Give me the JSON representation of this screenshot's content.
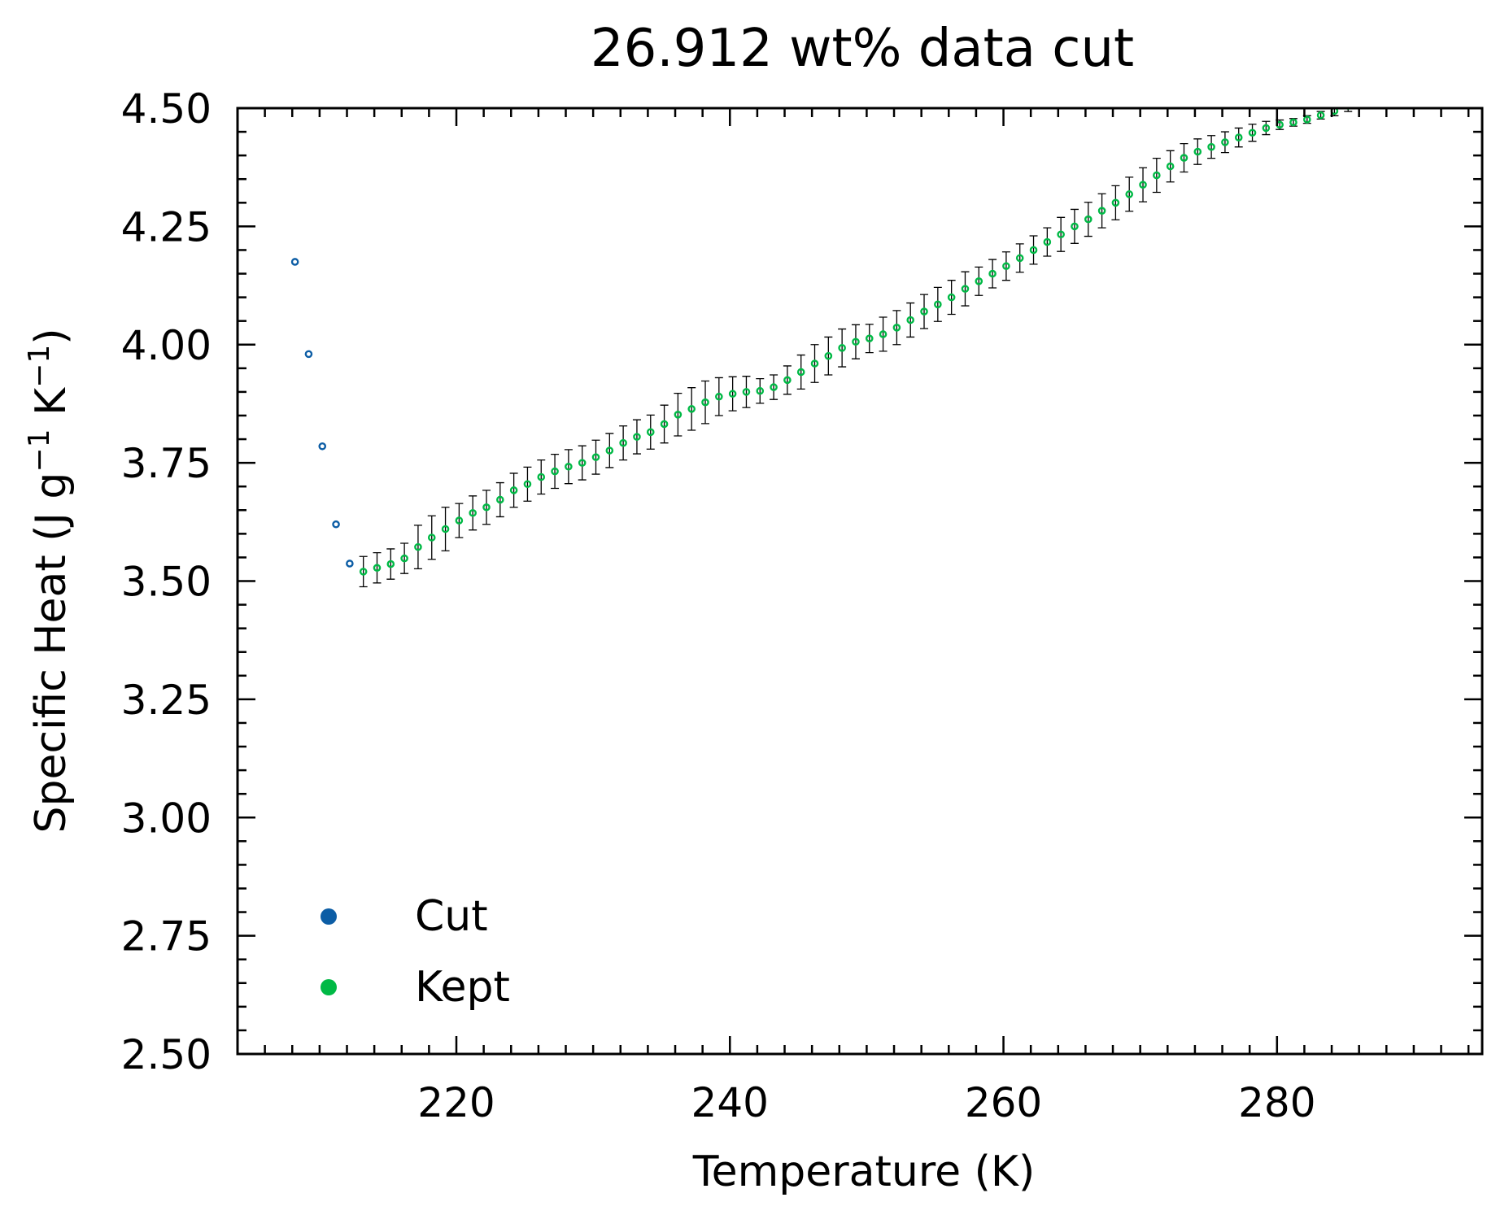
{
  "chart_data": {
    "type": "scatter",
    "title": "26.912 wt% data cut",
    "xlabel": "Temperature (K)",
    "ylabel_parts": [
      "Specific Heat (J g",
      "−1",
      " K",
      "−1",
      ")"
    ],
    "xlim": [
      204,
      295
    ],
    "ylim": [
      2.5,
      4.5
    ],
    "x_major_ticks": [
      220,
      240,
      260,
      280
    ],
    "x_minor_step": 2,
    "y_major_ticks": [
      2.5,
      2.75,
      3.0,
      3.25,
      3.5,
      3.75,
      4.0,
      4.25,
      4.5
    ],
    "y_tick_labels": [
      "2.50",
      "2.75",
      "3.00",
      "3.25",
      "3.50",
      "3.75",
      "4.00",
      "4.25",
      "4.50"
    ],
    "y_minor_step": 0.05,
    "grid": false,
    "legend_position": "lower-left",
    "series": [
      {
        "name": "Cut",
        "color": "#0C5DA5",
        "x": [
          208.2,
          209.2,
          210.2,
          211.2,
          212.2
        ],
        "y": [
          4.175,
          3.98,
          3.785,
          3.62,
          3.537
        ],
        "err": []
      },
      {
        "name": "Kept",
        "color": "#00B945",
        "x": [
          213.2,
          214.2,
          215.2,
          216.2,
          217.2,
          218.2,
          219.2,
          220.2,
          221.2,
          222.2,
          223.2,
          224.2,
          225.2,
          226.2,
          227.2,
          228.2,
          229.2,
          230.2,
          231.2,
          232.2,
          233.2,
          234.2,
          235.2,
          236.2,
          237.2,
          238.2,
          239.2,
          240.2,
          241.2,
          242.2,
          243.2,
          244.2,
          245.2,
          246.2,
          247.2,
          248.2,
          249.2,
          250.2,
          251.2,
          252.2,
          253.2,
          254.2,
          255.2,
          256.2,
          257.2,
          258.2,
          259.2,
          260.2,
          261.2,
          262.2,
          263.2,
          264.2,
          265.2,
          266.2,
          267.2,
          268.2,
          269.2,
          270.2,
          271.2,
          272.2,
          273.2,
          274.2,
          275.2,
          276.2,
          277.2,
          278.2,
          279.2,
          280.2,
          281.2,
          282.2,
          283.2,
          284.2,
          285.2
        ],
        "y": [
          3.52,
          3.528,
          3.536,
          3.548,
          3.572,
          3.592,
          3.61,
          3.628,
          3.644,
          3.656,
          3.672,
          3.692,
          3.705,
          3.72,
          3.732,
          3.742,
          3.75,
          3.762,
          3.776,
          3.792,
          3.805,
          3.815,
          3.832,
          3.852,
          3.864,
          3.878,
          3.89,
          3.896,
          3.9,
          3.902,
          3.91,
          3.925,
          3.942,
          3.96,
          3.976,
          3.993,
          4.006,
          4.013,
          4.022,
          4.036,
          4.052,
          4.07,
          4.085,
          4.1,
          4.118,
          4.134,
          4.15,
          4.166,
          4.183,
          4.2,
          4.217,
          4.233,
          4.25,
          4.265,
          4.283,
          4.3,
          4.318,
          4.338,
          4.358,
          4.377,
          4.395,
          4.408,
          4.418,
          4.428,
          4.438,
          4.448,
          4.458,
          4.465,
          4.47,
          4.476,
          4.485,
          4.494,
          4.505
        ],
        "err": [
          0.032,
          0.032,
          0.032,
          0.032,
          0.046,
          0.046,
          0.046,
          0.036,
          0.036,
          0.036,
          0.036,
          0.036,
          0.036,
          0.036,
          0.036,
          0.036,
          0.036,
          0.036,
          0.036,
          0.036,
          0.036,
          0.036,
          0.04,
          0.045,
          0.045,
          0.045,
          0.04,
          0.036,
          0.033,
          0.026,
          0.026,
          0.03,
          0.036,
          0.04,
          0.04,
          0.04,
          0.036,
          0.03,
          0.036,
          0.036,
          0.036,
          0.036,
          0.036,
          0.036,
          0.036,
          0.03,
          0.03,
          0.03,
          0.03,
          0.03,
          0.03,
          0.036,
          0.036,
          0.036,
          0.036,
          0.036,
          0.036,
          0.036,
          0.036,
          0.033,
          0.03,
          0.027,
          0.024,
          0.022,
          0.02,
          0.018,
          0.014,
          0.01,
          0.008,
          0.008,
          0.008,
          0.01,
          0.012
        ]
      }
    ]
  }
}
